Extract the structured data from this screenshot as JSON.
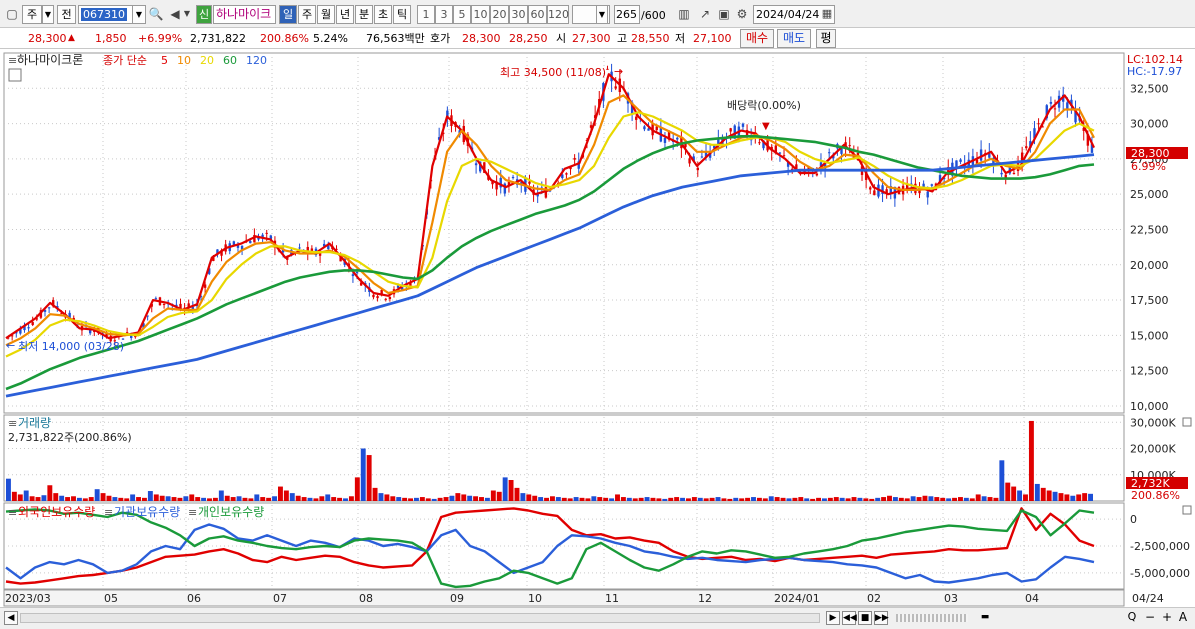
{
  "toolbar": {
    "market_label": "주",
    "prev_label": "전",
    "code": "067310",
    "new_badge": "신",
    "name": "하나마이크",
    "periods": [
      "일",
      "주",
      "월",
      "년",
      "분",
      "초",
      "틱"
    ],
    "selected_period": "일",
    "intervals": [
      "1",
      "3",
      "5",
      "10",
      "20",
      "30",
      "60",
      "120"
    ],
    "count": "265",
    "count_total": "/600",
    "date": "2024/04/24"
  },
  "quote": {
    "price": "28,300",
    "change": "1,850",
    "change_pct": "+6.99%",
    "volume": "2,731,822",
    "volume_ratio": "200.86%",
    "turnover": "5.24%",
    "amount": "76,563백만",
    "ask_label": "호가",
    "ask": "28,300",
    "bid": "28,250",
    "open_label": "시",
    "open": "27,300",
    "high_label": "고",
    "high": "28,550",
    "low_label": "저",
    "low": "27,100",
    "buy_button": "매수",
    "sell_button": "매도",
    "eval_button": "평"
  },
  "price_panel": {
    "title": "하나마이크론",
    "legend_prefix": "종가 단순",
    "ma_legend": [
      {
        "label": "5",
        "color": "#e00000"
      },
      {
        "label": "10",
        "color": "#f08a00"
      },
      {
        "label": "20",
        "color": "#e8d800"
      },
      {
        "label": "60",
        "color": "#1a9a3a"
      },
      {
        "label": "120",
        "color": "#2b5fd9"
      }
    ],
    "lc_label": "LC:102.14",
    "hc_label": "HC:-17.97",
    "current_price_tag": "28,300",
    "current_pct_tag": "6.99%",
    "high_annotation": "최고 34,500 (11/08)",
    "low_annotation": "최저 14,000 (03/28)",
    "dividend_annotation": "배당락(0.00%)"
  },
  "volume_panel": {
    "title": "거래량",
    "subtitle": "2,731,822주(200.86%)",
    "value_tag": "2,732K",
    "pct_tag": "200.86%"
  },
  "holding_panel": {
    "legend": [
      {
        "label": "외국인보유수량",
        "color": "#e00000"
      },
      {
        "label": "기관보유수량",
        "color": "#2b5fd9"
      },
      {
        "label": "개인보유수량",
        "color": "#1a9a3a"
      }
    ]
  },
  "x_axis_labels": [
    "2023/03",
    "05",
    "06",
    "07",
    "08",
    "09",
    "10",
    "11",
    "12",
    "2024/01",
    "02",
    "03",
    "04",
    "04/24"
  ],
  "colors": {
    "up": "#e00000",
    "down": "#1d4fd6",
    "grid": "#c9c9c9"
  },
  "chart_data": [
    {
      "type": "candlestick",
      "title": "하나마이크론",
      "y_ticks": [
        10000,
        12500,
        15000,
        17500,
        20000,
        22500,
        25000,
        27500,
        30000,
        32500
      ],
      "ylim": [
        9500,
        35000
      ],
      "x_range": [
        "2023/03",
        "2024/04/24"
      ],
      "key_points": [
        {
          "date": "2023/03/28",
          "label": "최저",
          "value": 14000
        },
        {
          "date": "2023/11/08",
          "label": "최고",
          "value": 34500
        },
        {
          "date": "2024/04/24",
          "label": "종가",
          "value": 28300
        }
      ],
      "series": [
        {
          "name": "5",
          "values": [
            14800,
            15500,
            16200,
            17300,
            16500,
            15500,
            15400,
            14800,
            15000,
            15200,
            17500,
            17300,
            16800,
            17200,
            20500,
            21200,
            21500,
            22000,
            21800,
            20500,
            21000,
            20800,
            21500,
            20300,
            19000,
            18000,
            17800,
            18500,
            19000,
            27000,
            30500,
            29500,
            27500,
            26000,
            25500,
            26000,
            25000,
            25300,
            26800,
            27200,
            30000,
            33500,
            32500,
            30500,
            29500,
            29000,
            28500,
            27000,
            28000,
            29000,
            29500,
            29300,
            28200,
            27500,
            26500,
            26500,
            27500,
            28500,
            27500,
            25500,
            25000,
            25300,
            25500,
            25200,
            26500,
            27000,
            27500,
            28000,
            26500,
            27000,
            29000,
            31000,
            32000,
            30500,
            28300
          ]
        },
        {
          "name": "10",
          "values": [
            14300,
            14800,
            15500,
            16500,
            16400,
            15800,
            15500,
            15100,
            15000,
            15100,
            16200,
            16900,
            16800,
            16800,
            18800,
            20200,
            21000,
            21500,
            21600,
            21000,
            20800,
            20800,
            21000,
            20600,
            19700,
            18700,
            18000,
            18200,
            18500,
            23000,
            28000,
            29500,
            28500,
            27000,
            26000,
            25700,
            25400,
            25300,
            26000,
            26400,
            28500,
            31500,
            32000,
            31000,
            30000,
            29500,
            29000,
            28000,
            28000,
            28500,
            29000,
            29200,
            28800,
            28200,
            27300,
            26700,
            27000,
            27800,
            27700,
            26500,
            25500,
            25300,
            25300,
            25400,
            25900,
            26500,
            27100,
            27500,
            27000,
            26800,
            28000,
            30000,
            31000,
            31000,
            29000
          ]
        },
        {
          "name": "20",
          "values": [
            13500,
            14000,
            14700,
            15700,
            16100,
            16000,
            15700,
            15300,
            15100,
            15000,
            15600,
            16300,
            16600,
            16700,
            17500,
            19000,
            20000,
            20800,
            21300,
            21300,
            21000,
            20900,
            20900,
            20700,
            20200,
            19500,
            18800,
            18500,
            18400,
            20500,
            24500,
            27000,
            27500,
            27300,
            26800,
            26300,
            25800,
            25500,
            25700,
            26000,
            27000,
            29000,
            30500,
            30800,
            30500,
            30000,
            29500,
            28800,
            28500,
            28500,
            28800,
            29000,
            29000,
            28700,
            28000,
            27500,
            27200,
            27400,
            27600,
            27000,
            26300,
            25800,
            25500,
            25400,
            25600,
            26000,
            26500,
            27000,
            27100,
            27000,
            27500,
            28500,
            29500,
            30000,
            29500
          ]
        },
        {
          "name": "60",
          "values": [
            11200,
            11600,
            12100,
            12600,
            13000,
            13400,
            13700,
            14000,
            14300,
            14600,
            15000,
            15400,
            15800,
            16200,
            16700,
            17200,
            17600,
            18000,
            18400,
            18800,
            19100,
            19300,
            19500,
            19600,
            19600,
            19500,
            19300,
            19100,
            19000,
            19600,
            20500,
            21300,
            21900,
            22400,
            22800,
            23200,
            23600,
            23900,
            24200,
            24600,
            25200,
            26000,
            26800,
            27400,
            27900,
            28300,
            28600,
            28800,
            28900,
            29000,
            29100,
            29100,
            29000,
            28900,
            28800,
            28700,
            28500,
            28300,
            28000,
            27800,
            27500,
            27200,
            26900,
            26700,
            26500,
            26300,
            26200,
            26100,
            26100,
            26100,
            26200,
            26400,
            26700,
            27000,
            27100
          ]
        },
        {
          "name": "120",
          "values": [
            10700,
            10900,
            11100,
            11300,
            11500,
            11700,
            11900,
            12100,
            12300,
            12500,
            12700,
            12900,
            13100,
            13300,
            13600,
            13900,
            14200,
            14500,
            14800,
            15100,
            15400,
            15700,
            16000,
            16300,
            16600,
            16900,
            17200,
            17500,
            17800,
            18300,
            18800,
            19300,
            19800,
            20200,
            20600,
            21000,
            21400,
            21800,
            22200,
            22600,
            23100,
            23600,
            24100,
            24500,
            24900,
            25200,
            25500,
            25700,
            25900,
            26100,
            26300,
            26400,
            26500,
            26600,
            26700,
            26700,
            26700,
            26700,
            26700,
            26700,
            26700,
            26700,
            26700,
            26700,
            26800,
            26900,
            27000,
            27100,
            27200,
            27300,
            27400,
            27500,
            27600,
            27700,
            27800
          ]
        }
      ]
    },
    {
      "type": "bar",
      "title": "거래량",
      "y_ticks": [
        10000,
        20000,
        30000
      ],
      "y_unit": "K",
      "ylim": [
        0,
        32000
      ],
      "values": [
        8500,
        3500,
        2500,
        4000,
        1800,
        1500,
        2200,
        6000,
        3000,
        2000,
        1500,
        1800,
        1200,
        1000,
        1500,
        4500,
        3000,
        2000,
        1500,
        1200,
        1000,
        2500,
        1500,
        1200,
        3800,
        2500,
        2000,
        1800,
        1500,
        1200,
        1800,
        2500,
        1500,
        1200,
        1000,
        1200,
        4000,
        2000,
        1500,
        1800,
        1200,
        1000,
        2500,
        1500,
        1200,
        1800,
        5500,
        4000,
        3000,
        2000,
        1500,
        1200,
        1000,
        1800,
        2500,
        1500,
        1200,
        1000,
        1800,
        9000,
        20000,
        17500,
        5000,
        3000,
        2500,
        1800,
        1500,
        1200,
        1000,
        1200,
        1500,
        1000,
        800,
        1200,
        1500,
        2000,
        3000,
        2500,
        2000,
        1800,
        1500,
        1200,
        4000,
        3500,
        9000,
        8000,
        5000,
        3000,
        2500,
        2000,
        1500,
        1200,
        1800,
        1500,
        1200,
        1000,
        1500,
        1200,
        1000,
        1800,
        1500,
        1200,
        1000,
        2500,
        1500,
        1200,
        1000,
        1200,
        1500,
        1200,
        1000,
        800,
        1200,
        1500,
        1200,
        1000,
        1500,
        1200,
        1000,
        1200,
        1500,
        1000,
        800,
        1200,
        1000,
        1200,
        1500,
        1200,
        1000,
        1800,
        1500,
        1200,
        1000,
        1200,
        1500,
        1000,
        800,
        1200,
        1000,
        1200,
        1500,
        1200,
        1000,
        1500,
        1200,
        1000,
        800,
        1200,
        1500,
        2000,
        1500,
        1200,
        1000,
        1800,
        1500,
        2000,
        1800,
        1500,
        1200,
        1000,
        1200,
        1500,
        1200,
        1000,
        2500,
        1800,
        1500,
        1200,
        15500,
        7000,
        5500,
        4000,
        2500,
        30500,
        6500,
        5000,
        4000,
        3500,
        3000,
        2500,
        2000,
        2500,
        3000,
        2732
      ]
    },
    {
      "type": "line",
      "title": "보유수량",
      "y_ticks": [
        0,
        -2500000,
        -5000000
      ],
      "ylim": [
        -6500000,
        1500000
      ],
      "series": [
        {
          "name": "외국인보유수량",
          "values": [
            -5800000,
            -6000000,
            -5900000,
            -5700000,
            -5500000,
            -5300000,
            -5200000,
            -5000000,
            -4800000,
            -4500000,
            -4000000,
            -3500000,
            -3400000,
            -3300000,
            -3000000,
            -2800000,
            -3200000,
            -3800000,
            -4000000,
            -3500000,
            -3800000,
            -3600000,
            -3400000,
            -3500000,
            -4000000,
            -4300000,
            -4500000,
            -4400000,
            -4300000,
            -3000000,
            200000,
            600000,
            700000,
            800000,
            900000,
            1000000,
            800000,
            500000,
            300000,
            -1000000,
            -1500000,
            -1400000,
            -1800000,
            -1700000,
            -2000000,
            -2200000,
            -3000000,
            -3500000,
            -3700000,
            -3600000,
            -3500000,
            -3800000,
            -3700000,
            -3900000,
            -3600000,
            -3800000,
            -3700000,
            -3600000,
            -3500000,
            -3400000,
            -3600000,
            -3300000,
            -3200000,
            -3100000,
            -3000000,
            -2800000,
            -2900000,
            -2900000,
            -2800000,
            -2700000,
            1000000,
            -1000000,
            500000,
            -500000,
            -2000000,
            -2500000
          ]
        },
        {
          "name": "기관보유수량",
          "values": [
            -4500000,
            -5500000,
            -4500000,
            -4000000,
            -4200000,
            -3800000,
            -4200000,
            -5000000,
            -4800000,
            -4200000,
            -3000000,
            -2500000,
            -2800000,
            -1000000,
            -500000,
            -900000,
            -1800000,
            -2000000,
            -1500000,
            -2000000,
            -2500000,
            -2000000,
            -2200000,
            -2600000,
            -1800000,
            -2000000,
            -2500000,
            -2300000,
            -2600000,
            -3000000,
            -1500000,
            -1000000,
            -2500000,
            -3000000,
            -4000000,
            -5000000,
            -4500000,
            -4000000,
            -2500000,
            -1500000,
            -1600000,
            -1800000,
            -2200000,
            -2500000,
            -3000000,
            -3200000,
            -3500000,
            -3700000,
            -3600000,
            -3800000,
            -3900000,
            -4000000,
            -3800000,
            -3700000,
            -3600000,
            -3800000,
            -3900000,
            -4000000,
            -4200000,
            -4300000,
            -4500000,
            -5000000,
            -5500000,
            -5200000,
            -5800000,
            -5900000,
            -5700000,
            -5500000,
            -5200000,
            -5000000,
            -5800000,
            -5600000,
            -4500000,
            -3500000,
            -3700000,
            -4000000
          ]
        },
        {
          "name": "개인보유수량",
          "values": [
            700000,
            800000,
            900000,
            800000,
            500000,
            600000,
            400000,
            200000,
            600000,
            400000,
            -300000,
            -800000,
            -1500000,
            -2500000,
            -1800000,
            -1600000,
            -2000000,
            -2200000,
            -2500000,
            -2700000,
            -2800000,
            -2600000,
            -2500000,
            -2600000,
            -2000000,
            -1800000,
            -1900000,
            -2000000,
            -2200000,
            -3000000,
            -6000000,
            -6300000,
            -6200000,
            -5800000,
            -5500000,
            -4800000,
            -5000000,
            -5500000,
            -6000000,
            -5500000,
            -2800000,
            -2200000,
            -3000000,
            -3800000,
            -4500000,
            -4800000,
            -4200000,
            -3500000,
            -3000000,
            -3200000,
            -2900000,
            -3000000,
            -3300000,
            -3600000,
            -3500000,
            -3200000,
            -3000000,
            -2800000,
            -2500000,
            -2000000,
            -1800000,
            -1500000,
            -1200000,
            -1000000,
            -800000,
            -600000,
            -700000,
            -900000,
            -1000000,
            -1100000,
            800000,
            200000,
            -1500000,
            -400000,
            800000,
            600000
          ]
        }
      ]
    }
  ]
}
